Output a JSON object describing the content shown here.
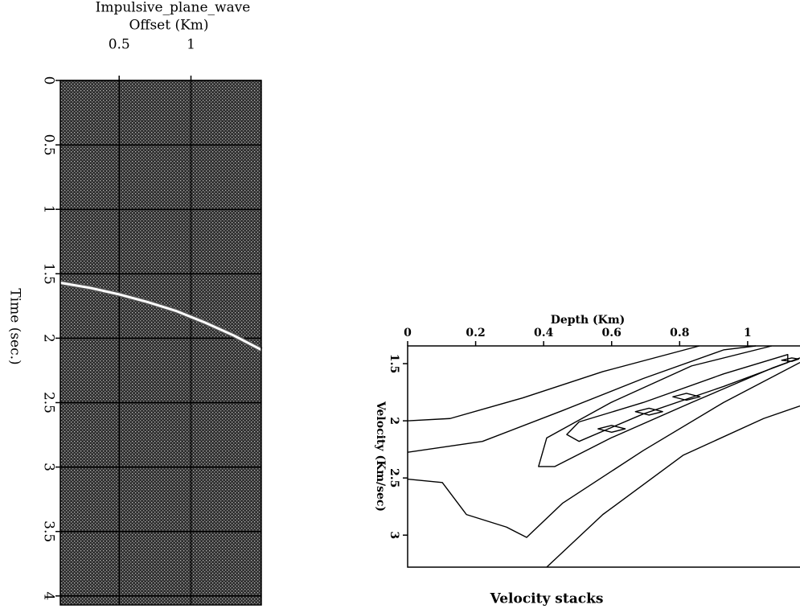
{
  "chart_data": [
    {
      "type": "line",
      "title": "Impulsive_plane_wave",
      "xlabel": "Offset (Km)",
      "ylabel": "Time (sec.)",
      "xlim": [
        0.09,
        1.49
      ],
      "xticks": [
        0.5,
        1
      ],
      "ylim": [
        0,
        4.07
      ],
      "yticks": [
        0,
        0.5,
        1,
        1.5,
        2,
        2.5,
        3,
        3.5,
        4
      ],
      "grid": true,
      "series": [
        {
          "color": "#ffffff",
          "x": [
            0.09,
            0.3,
            0.5,
            0.7,
            0.9,
            1.1,
            1.3,
            1.49
          ],
          "values": [
            1.57,
            1.61,
            1.66,
            1.72,
            1.79,
            1.88,
            1.98,
            2.09
          ]
        }
      ]
    },
    {
      "type": "contour",
      "title": "Velocity stacks",
      "xlabel": "Depth (Km)",
      "ylabel": "Velocity (Km/sec)",
      "xlim": [
        0,
        1.154
      ],
      "xticks": [
        0,
        0.2,
        0.4,
        0.6,
        0.8,
        1
      ],
      "ylim": [
        1.345,
        3.28
      ],
      "yticks": [
        1.5,
        2,
        2.5,
        3
      ],
      "color": "#000000",
      "contours": [
        {
          "closed": false,
          "x": [
            0,
            0.125,
            0.338,
            0.574,
            0.858
          ],
          "y": [
            2.0,
            1.98,
            1.8,
            1.57,
            1.345
          ]
        },
        {
          "closed": false,
          "x": [
            0,
            0.22,
            0.456,
            0.693,
            0.929,
            1.024
          ],
          "y": [
            2.275,
            2.18,
            1.91,
            1.63,
            1.38,
            1.345
          ]
        },
        {
          "closed": false,
          "x": [
            1.071,
            0.835,
            0.598,
            0.409,
            0.385,
            0.433,
            0.598,
            0.835,
            1.071,
            1.154
          ],
          "y": [
            1.345,
            1.52,
            1.84,
            2.15,
            2.4,
            2.4,
            2.15,
            1.84,
            1.54,
            1.45
          ]
        },
        {
          "closed": false,
          "x": [
            0,
            0.102,
            0.173,
            0.291,
            0.35,
            0.456,
            0.693,
            0.929,
            1.154
          ],
          "y": [
            2.51,
            2.54,
            2.82,
            2.93,
            3.02,
            2.72,
            2.26,
            1.84,
            1.49
          ]
        },
        {
          "closed": false,
          "x": [
            0.409,
            0.574,
            0.811,
            1.047,
            1.154
          ],
          "y": [
            3.28,
            2.82,
            2.3,
            1.98,
            1.87
          ]
        },
        {
          "closed": true,
          "x": [
            0.468,
            0.504,
            0.693,
            0.929,
            1.118,
            1.118,
            0.929,
            0.693,
            0.504
          ],
          "y": [
            2.12,
            2.01,
            1.84,
            1.59,
            1.42,
            1.49,
            1.7,
            1.94,
            2.18
          ]
        },
        {
          "closed": true,
          "x": [
            0.56,
            0.6,
            0.64,
            0.6
          ],
          "y": [
            2.07,
            2.04,
            2.07,
            2.1
          ]
        },
        {
          "closed": true,
          "x": [
            0.67,
            0.71,
            0.75,
            0.71
          ],
          "y": [
            1.92,
            1.89,
            1.92,
            1.95
          ]
        },
        {
          "closed": true,
          "x": [
            0.78,
            0.82,
            0.86,
            0.82
          ],
          "y": [
            1.79,
            1.76,
            1.79,
            1.82
          ]
        },
        {
          "closed": true,
          "x": [
            1.1,
            1.13,
            1.15,
            1.13
          ],
          "y": [
            1.47,
            1.45,
            1.46,
            1.48
          ]
        }
      ]
    }
  ]
}
